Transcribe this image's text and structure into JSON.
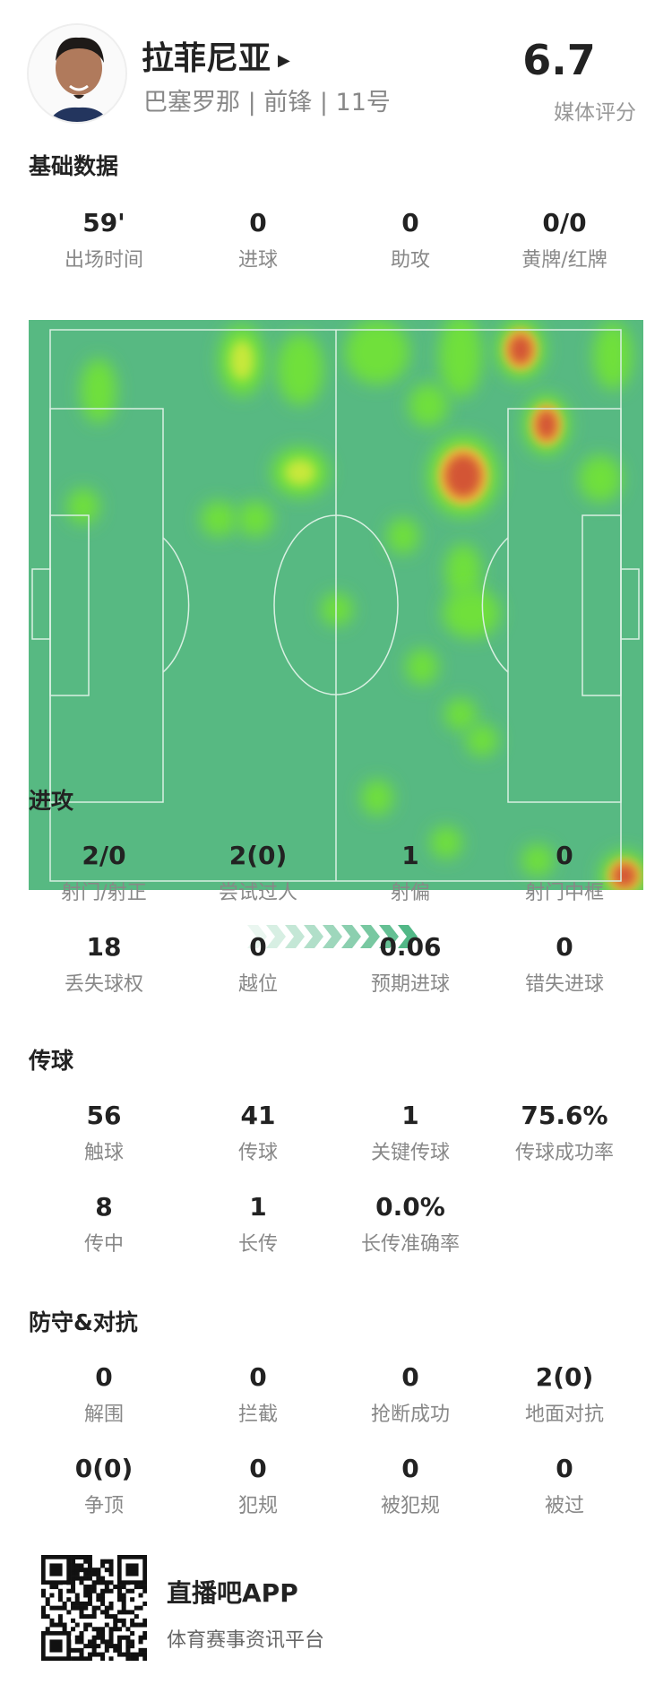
{
  "player": {
    "name": "拉菲尼亚",
    "team": "巴塞罗那",
    "position": "前锋",
    "number": "11号",
    "rating": "6.7",
    "rating_label": "媒体评分",
    "arrow_icon": "triangle-right"
  },
  "sections": [
    {
      "title": "基础数据",
      "rows": [
        [
          {
            "value": "59'",
            "label": "出场时间"
          },
          {
            "value": "0",
            "label": "进球"
          },
          {
            "value": "0",
            "label": "助攻"
          },
          {
            "value": "0/0",
            "label": "黄牌/红牌"
          }
        ]
      ]
    },
    {
      "title": "进攻",
      "rows": [
        [
          {
            "value": "2/0",
            "label": "射门/射正"
          },
          {
            "value": "2(0)",
            "label": "尝试过人"
          },
          {
            "value": "1",
            "label": "射偏"
          },
          {
            "value": "0",
            "label": "射门中框"
          }
        ],
        [
          {
            "value": "18",
            "label": "丢失球权"
          },
          {
            "value": "0",
            "label": "越位"
          },
          {
            "value": "0.06",
            "label": "预期进球"
          },
          {
            "value": "0",
            "label": "错失进球"
          }
        ]
      ]
    },
    {
      "title": "传球",
      "rows": [
        [
          {
            "value": "56",
            "label": "触球"
          },
          {
            "value": "41",
            "label": "传球"
          },
          {
            "value": "1",
            "label": "关键传球"
          },
          {
            "value": "75.6%",
            "label": "传球成功率"
          }
        ],
        [
          {
            "value": "8",
            "label": "传中"
          },
          {
            "value": "1",
            "label": "长传"
          },
          {
            "value": "0.0%",
            "label": "长传准确率"
          }
        ]
      ]
    },
    {
      "title": "防守&对抗",
      "rows": [
        [
          {
            "value": "0",
            "label": "解围"
          },
          {
            "value": "0",
            "label": "拦截"
          },
          {
            "value": "0",
            "label": "抢断成功"
          },
          {
            "value": "2(0)",
            "label": "地面对抗"
          }
        ],
        [
          {
            "value": "0(0)",
            "label": "争顶"
          },
          {
            "value": "0",
            "label": "犯规"
          },
          {
            "value": "0",
            "label": "被犯规"
          },
          {
            "value": "0",
            "label": "被过"
          }
        ]
      ]
    }
  ],
  "heatmap": {
    "pitch_color": "#57b982",
    "line_color": "#d9f0e2",
    "attack_direction": "right"
  },
  "footer": {
    "app_name": "直播吧APP",
    "tagline": "体育赛事资讯平台"
  }
}
